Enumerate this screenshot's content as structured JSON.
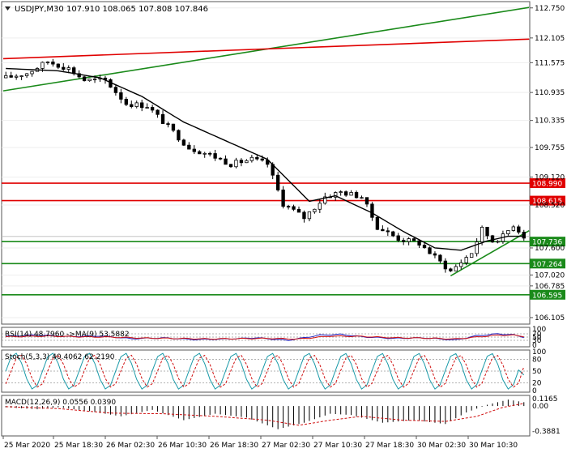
{
  "chart_data": [
    {
      "type": "candlestick",
      "header": {
        "symbol": "USDJPY,M30",
        "values": "107.910 108.065 107.808 107.846"
      },
      "y_ticks": [
        "112.750",
        "112.105",
        "111.575",
        "110.935",
        "110.335",
        "109.755",
        "109.120",
        "108.520",
        "107.600",
        "107.020",
        "106.785",
        "106.105"
      ],
      "ylim": [
        106.0,
        112.85
      ],
      "x_ticks": [
        "25 Mar 2020",
        "25 Mar 18:30",
        "26 Mar 02:30",
        "26 Mar 10:30",
        "26 Mar 18:30",
        "27 Mar 02:30",
        "27 Mar 10:30",
        "27 Mar 18:30",
        "30 Mar 02:30",
        "30 Mar 10:30"
      ],
      "levels": [
        {
          "value": 108.99,
          "label": "108.990",
          "color": "#e00000"
        },
        {
          "value": 108.615,
          "label": "108.615",
          "color": "#e00000"
        },
        {
          "value": 107.736,
          "label": "107.736",
          "color": "#1a8a1a"
        },
        {
          "value": 107.264,
          "label": "107.264",
          "color": "#1a8a1a"
        },
        {
          "value": 106.595,
          "label": "106.595",
          "color": "#1a8a1a"
        }
      ],
      "current_price": {
        "value": 107.846
      },
      "trendlines": [
        {
          "color": "#1a8a1a",
          "points": [
            [
              0,
              110.97
            ],
            [
              100,
              112.76
            ]
          ]
        },
        {
          "color": "#e00000",
          "points": [
            [
              0,
              111.66
            ],
            [
              100,
              112.08
            ]
          ]
        },
        {
          "color": "#1a8a1a",
          "points": [
            [
              85,
              107.0
            ],
            [
              100,
              107.97
            ]
          ]
        }
      ],
      "candle_count": 100,
      "path_anchors": [
        [
          0,
          111.25
        ],
        [
          4,
          111.35
        ],
        [
          8,
          111.6
        ],
        [
          12,
          111.45
        ],
        [
          15,
          111.2
        ],
        [
          19,
          111.2
        ],
        [
          23,
          110.7
        ],
        [
          27,
          110.65
        ],
        [
          31,
          110.2
        ],
        [
          35,
          109.75
        ],
        [
          39,
          109.6
        ],
        [
          43,
          109.4
        ],
        [
          47,
          109.5
        ],
        [
          50,
          109.4
        ],
        [
          53,
          108.55
        ],
        [
          57,
          108.25
        ],
        [
          61,
          108.7
        ],
        [
          64,
          108.8
        ],
        [
          68,
          108.7
        ],
        [
          71,
          108.05
        ],
        [
          75,
          107.8
        ],
        [
          79,
          107.7
        ],
        [
          83,
          107.3
        ],
        [
          85,
          107.1
        ],
        [
          89,
          107.5
        ],
        [
          91,
          108.0
        ],
        [
          93,
          107.75
        ],
        [
          95,
          107.85
        ],
        [
          97,
          108.1
        ],
        [
          99,
          107.85
        ]
      ],
      "ma_anchors": [
        [
          0,
          111.45
        ],
        [
          10,
          111.4
        ],
        [
          18,
          111.25
        ],
        [
          26,
          110.85
        ],
        [
          34,
          110.3
        ],
        [
          42,
          109.9
        ],
        [
          50,
          109.5
        ],
        [
          54,
          109.05
        ],
        [
          58,
          108.6
        ],
        [
          63,
          108.72
        ],
        [
          70,
          108.35
        ],
        [
          76,
          107.95
        ],
        [
          82,
          107.6
        ],
        [
          87,
          107.55
        ],
        [
          92,
          107.75
        ],
        [
          96,
          107.85
        ],
        [
          99,
          107.85
        ]
      ]
    },
    {
      "type": "line",
      "header": "RSI(14) 48.7960 ->MA(9) 53.5882",
      "y_ticks": [
        "100",
        "70",
        "50",
        "30",
        "0"
      ],
      "ylim": [
        0,
        100
      ],
      "series": [
        {
          "color": "#2020c0",
          "anchors": [
            [
              0,
              55
            ],
            [
              6,
              63
            ],
            [
              12,
              53
            ],
            [
              18,
              57
            ],
            [
              24,
              40
            ],
            [
              30,
              45
            ],
            [
              36,
              35
            ],
            [
              42,
              38
            ],
            [
              48,
              45
            ],
            [
              54,
              30
            ],
            [
              60,
              62
            ],
            [
              64,
              67
            ],
            [
              68,
              52
            ],
            [
              74,
              42
            ],
            [
              80,
              45
            ],
            [
              86,
              32
            ],
            [
              90,
              58
            ],
            [
              94,
              70
            ],
            [
              97,
              64
            ],
            [
              99,
              49
            ]
          ]
        },
        {
          "color": "#d01010",
          "anchors": [
            [
              0,
              52
            ],
            [
              8,
              56
            ],
            [
              14,
              52
            ],
            [
              20,
              50
            ],
            [
              26,
              44
            ],
            [
              32,
              42
            ],
            [
              38,
              39
            ],
            [
              44,
              40
            ],
            [
              50,
              42
            ],
            [
              56,
              38
            ],
            [
              62,
              56
            ],
            [
              68,
              54
            ],
            [
              74,
              46
            ],
            [
              80,
              44
            ],
            [
              86,
              38
            ],
            [
              90,
              50
            ],
            [
              94,
              62
            ],
            [
              97,
              62
            ],
            [
              99,
              54
            ]
          ]
        }
      ]
    },
    {
      "type": "line",
      "header": "Stoch(5,3,3) 40.4062 62.2190",
      "y_ticks": [
        "100",
        "80",
        "50",
        "20",
        "0"
      ],
      "ylim": [
        0,
        100
      ],
      "series": [
        {
          "color": "#1a9aa8",
          "cycle": 7,
          "amplitude": 35,
          "offset": 50,
          "end": 40
        },
        {
          "color": "#d01010",
          "cycle": 7,
          "amplitude": 30,
          "offset": 50,
          "end": 62,
          "lag": 1
        }
      ]
    },
    {
      "type": "bar",
      "header": "MACD(12,26,9) 0.0556 0.0390",
      "y_ticks": [
        "0.1165",
        "0.00",
        "-0.3881"
      ],
      "ylim": [
        -0.44,
        0.14
      ],
      "histogram_anchors": [
        [
          0,
          -0.02
        ],
        [
          6,
          -0.05
        ],
        [
          10,
          -0.02
        ],
        [
          16,
          -0.08
        ],
        [
          22,
          -0.16
        ],
        [
          28,
          -0.06
        ],
        [
          34,
          -0.22
        ],
        [
          40,
          -0.12
        ],
        [
          46,
          -0.18
        ],
        [
          52,
          -0.36
        ],
        [
          57,
          -0.26
        ],
        [
          62,
          -0.12
        ],
        [
          66,
          -0.14
        ],
        [
          72,
          -0.26
        ],
        [
          78,
          -0.22
        ],
        [
          84,
          -0.28
        ],
        [
          88,
          -0.1
        ],
        [
          92,
          0.02
        ],
        [
          96,
          0.1
        ],
        [
          99,
          0.06
        ]
      ],
      "signal_anchors": [
        [
          0,
          -0.01
        ],
        [
          10,
          -0.04
        ],
        [
          20,
          -0.11
        ],
        [
          30,
          -0.12
        ],
        [
          40,
          -0.16
        ],
        [
          50,
          -0.22
        ],
        [
          56,
          -0.3
        ],
        [
          62,
          -0.22
        ],
        [
          68,
          -0.16
        ],
        [
          76,
          -0.22
        ],
        [
          84,
          -0.24
        ],
        [
          90,
          -0.16
        ],
        [
          95,
          -0.02
        ],
        [
          99,
          0.04
        ]
      ]
    }
  ]
}
